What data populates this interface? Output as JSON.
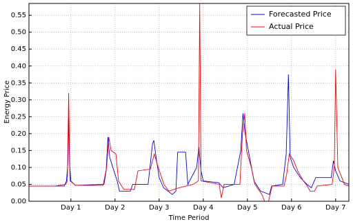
{
  "chart_data": {
    "type": "line",
    "xlabel": "Time Period",
    "ylabel": "Energy Price",
    "xlim": [
      0.05,
      7.3
    ],
    "xticks": [
      {
        "value": 1,
        "label": "Day 1"
      },
      {
        "value": 2,
        "label": "Day 2"
      },
      {
        "value": 3,
        "label": "Day 3"
      },
      {
        "value": 4,
        "label": "Day 4"
      },
      {
        "value": 5,
        "label": "Day 5"
      },
      {
        "value": 6,
        "label": "Day 6"
      },
      {
        "value": 7,
        "label": "Day 7"
      }
    ],
    "ylim": [
      0,
      0.585
    ],
    "yticks": [
      {
        "value": 0,
        "label": "0.00"
      },
      {
        "value": 0.05,
        "label": "0.05"
      },
      {
        "value": 0.1,
        "label": "0.10"
      },
      {
        "value": 0.15,
        "label": "0.15"
      },
      {
        "value": 0.2,
        "label": "0.20"
      },
      {
        "value": 0.25,
        "label": "0.25"
      },
      {
        "value": 0.3,
        "label": "0.30"
      },
      {
        "value": 0.35,
        "label": "0.35"
      },
      {
        "value": 0.4,
        "label": "0.40"
      },
      {
        "value": 0.45,
        "label": "0.45"
      },
      {
        "value": 0.5,
        "label": "0.50"
      },
      {
        "value": 0.55,
        "label": "0.55"
      }
    ],
    "grid": true,
    "legend": "upper right",
    "series": [
      {
        "name": "Forecasted Price",
        "color": "#0000ff",
        "x": [
          0.05,
          0.85,
          0.9,
          0.93,
          0.95,
          0.97,
          1.0,
          1.1,
          1.75,
          1.8,
          1.84,
          1.88,
          1.95,
          2.05,
          2.1,
          2.35,
          2.4,
          2.75,
          2.85,
          2.88,
          2.92,
          3.0,
          3.1,
          3.3,
          3.38,
          3.42,
          3.6,
          3.65,
          3.85,
          3.9,
          3.95,
          4.0,
          4.35,
          4.45,
          4.7,
          4.85,
          4.9,
          4.95,
          5.05,
          5.15,
          5.3,
          5.5,
          5.55,
          5.8,
          5.88,
          5.93,
          5.97,
          6.05,
          6.2,
          6.35,
          6.45,
          6.55,
          6.9,
          6.95,
          7.0,
          7.1,
          7.3
        ],
        "values": [
          0.045,
          0.045,
          0.06,
          0.11,
          0.25,
          0.11,
          0.06,
          0.047,
          0.05,
          0.09,
          0.19,
          0.13,
          0.1,
          0.06,
          0.03,
          0.03,
          0.05,
          0.05,
          0.17,
          0.18,
          0.14,
          0.07,
          0.04,
          0.02,
          0.03,
          0.145,
          0.145,
          0.05,
          0.1,
          0.16,
          0.09,
          0.06,
          0.055,
          0.04,
          0.05,
          0.15,
          0.26,
          0.2,
          0.13,
          0.06,
          0.03,
          0.02,
          0.045,
          0.05,
          0.14,
          0.375,
          0.13,
          0.1,
          0.07,
          0.05,
          0.04,
          0.07,
          0.07,
          0.12,
          0.09,
          0.06,
          0.05
        ]
      },
      {
        "name": "Actual Price",
        "color": "#ff0000",
        "x": [
          0.05,
          0.64,
          0.88,
          0.92,
          0.95,
          0.98,
          1.11,
          1.73,
          1.81,
          1.86,
          1.91,
          2.02,
          2.08,
          2.2,
          2.44,
          2.52,
          2.8,
          2.89,
          2.98,
          3.11,
          3.22,
          3.45,
          3.77,
          3.89,
          3.92,
          3.95,
          4.36,
          4.41,
          4.47,
          4.83,
          4.89,
          4.94,
          4.98,
          5.09,
          5.17,
          5.33,
          5.39,
          5.48,
          5.56,
          5.83,
          5.89,
          5.95,
          6.05,
          6.14,
          6.27,
          6.36,
          6.42,
          6.52,
          6.58,
          6.92,
          6.97,
          7.0,
          7.05,
          7.14,
          7.2,
          7.3
        ],
        "values": [
          0.045,
          0.045,
          0.05,
          0.06,
          0.32,
          0.06,
          0.047,
          0.047,
          0.1,
          0.19,
          0.15,
          0.14,
          0.06,
          0.035,
          0.035,
          0.09,
          0.095,
          0.14,
          0.1,
          0.05,
          0.03,
          0.04,
          0.05,
          0.06,
          0.585,
          0.06,
          0.05,
          0.01,
          0.05,
          0.05,
          0.2,
          0.26,
          0.15,
          0.1,
          0.05,
          0.02,
          0,
          0,
          0.045,
          0.045,
          0.08,
          0.14,
          0.12,
          0.09,
          0.06,
          0.045,
          0.03,
          0.03,
          0.045,
          0.05,
          0.1,
          0.39,
          0.1,
          0.07,
          0.05,
          0.045
        ]
      }
    ]
  }
}
